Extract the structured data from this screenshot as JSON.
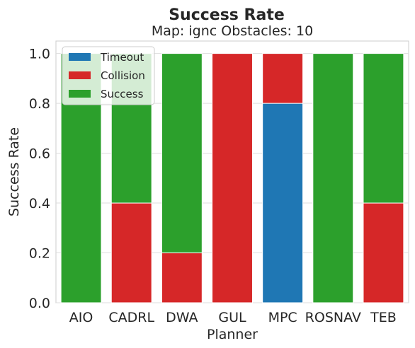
{
  "chart_data": {
    "type": "bar",
    "stacked": true,
    "title": "Success Rate",
    "subtitle": "Map: ignc Obstacles: 10",
    "xlabel": "Planner",
    "ylabel": "Success Rate",
    "ylim": [
      0,
      1.05
    ],
    "yticks": [
      "0.0",
      "0.2",
      "0.4",
      "0.6",
      "0.8",
      "1.0"
    ],
    "categories": [
      "AIO",
      "CADRL",
      "DWA",
      "GUL",
      "MPC",
      "ROSNAV",
      "TEB"
    ],
    "series": [
      {
        "name": "Timeout",
        "color": "#1f77b4",
        "values": [
          0,
          0,
          0,
          0,
          0.8,
          0,
          0
        ]
      },
      {
        "name": "Collision",
        "color": "#d62728",
        "values": [
          0,
          0.4,
          0.2,
          1.0,
          0.2,
          0,
          0.4
        ]
      },
      {
        "name": "Success",
        "color": "#2ca02c",
        "values": [
          1.0,
          0.6,
          0.8,
          0,
          0,
          1.0,
          0.6
        ]
      }
    ],
    "grid": true,
    "legend_position": "top-left"
  }
}
